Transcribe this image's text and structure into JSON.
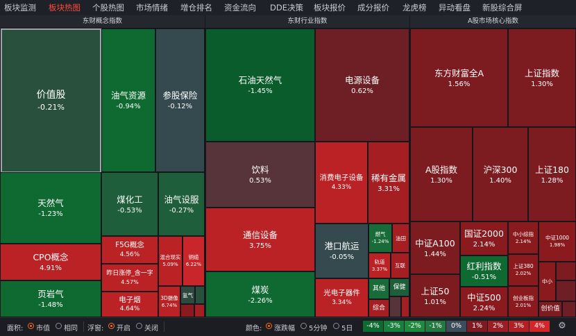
{
  "nav": {
    "tabs": [
      {
        "label": "板块监测",
        "active": false
      },
      {
        "label": "板块热图",
        "active": true
      },
      {
        "label": "个股热图",
        "active": false
      },
      {
        "label": "市场情绪",
        "active": false
      },
      {
        "label": "增仓排名",
        "active": false
      },
      {
        "label": "资金流向",
        "active": false
      },
      {
        "label": "DDE决策",
        "active": false
      },
      {
        "label": "板块报价",
        "active": false
      },
      {
        "label": "成分报价",
        "active": false
      },
      {
        "label": "龙虎榜",
        "active": false
      },
      {
        "label": "异动看盘",
        "active": false
      },
      {
        "label": "新股综合屏",
        "active": false
      }
    ]
  },
  "sections": [
    {
      "title": "东财概念指数"
    },
    {
      "title": "东财行业指数"
    },
    {
      "title": "A股市场核心指数"
    }
  ],
  "tiles": [
    {
      "name": "价值股",
      "pct": "-0.21%"
    },
    {
      "name": "油气资源",
      "pct": "-0.94%"
    },
    {
      "name": "参股保险",
      "pct": "-0.12%"
    },
    {
      "name": "天然气",
      "pct": "-1.23%"
    },
    {
      "name": "煤化工",
      "pct": "-0.53%"
    },
    {
      "name": "油气设服",
      "pct": "-0.27%"
    },
    {
      "name": "CPO概念",
      "pct": "4.91%"
    },
    {
      "name": "F5G概念",
      "pct": "4.56%"
    },
    {
      "name": "昨日涨停_含一字",
      "pct": "4.57%"
    },
    {
      "name": "混合现实",
      "pct": "5.09%"
    },
    {
      "name": "铜缆",
      "pct": "6.22%"
    },
    {
      "name": "页岩气",
      "pct": "-1.48%"
    },
    {
      "name": "电子烟",
      "pct": "4.64%"
    },
    {
      "name": "3D摄像",
      "pct": "6.74%"
    },
    {
      "name": "氢气",
      "pct": ""
    },
    {
      "name": "石油天然气",
      "pct": "-1.45%"
    },
    {
      "name": "电源设备",
      "pct": "0.62%"
    },
    {
      "name": "饮料",
      "pct": "0.53%"
    },
    {
      "name": "消费电子设备",
      "pct": "4.33%"
    },
    {
      "name": "稀有金属",
      "pct": "3.31%"
    },
    {
      "name": "通信设备",
      "pct": "3.75%"
    },
    {
      "name": "港口航运",
      "pct": "-0.05%"
    },
    {
      "name": "燃气",
      "pct": "-1.24%"
    },
    {
      "name": "油田",
      "pct": ""
    },
    {
      "name": "轨道",
      "pct": "3.37%"
    },
    {
      "name": "互联",
      "pct": ""
    },
    {
      "name": "煤炭",
      "pct": "-2.26%"
    },
    {
      "name": "光电子器件",
      "pct": "3.34%"
    },
    {
      "name": "其他",
      "pct": ""
    },
    {
      "name": "保健",
      "pct": ""
    },
    {
      "name": "综合",
      "pct": ""
    },
    {
      "name": "东方财富全A",
      "pct": "1.56%"
    },
    {
      "name": "上证指数",
      "pct": "1.30%"
    },
    {
      "name": "A股指数",
      "pct": "1.30%"
    },
    {
      "name": "沪深300",
      "pct": "1.40%"
    },
    {
      "name": "上证180",
      "pct": "1.28%"
    },
    {
      "name": "中证A100",
      "pct": "1.44%"
    },
    {
      "name": "国证2000",
      "pct": "2.14%"
    },
    {
      "name": "中小综指",
      "pct": "2.14%"
    },
    {
      "name": "中证1000",
      "pct": "1.98%"
    },
    {
      "name": "红利指数",
      "pct": "-0.51%"
    },
    {
      "name": "上证380",
      "pct": "2.02%"
    },
    {
      "name": "中小",
      "pct": ""
    },
    {
      "name": "上证50",
      "pct": "1.01%"
    },
    {
      "name": "中证500",
      "pct": "2.24%"
    },
    {
      "name": "创业板指",
      "pct": "2.01%"
    },
    {
      "name": "创价值",
      "pct": ""
    }
  ],
  "bottom": {
    "area_label": "面积:",
    "area_opts": [
      "市值",
      "相同"
    ],
    "float_label": "浮窗:",
    "float_opts": [
      "开启",
      "关闭"
    ],
    "color_label": "颜色:",
    "color_opts": [
      "涨跌幅",
      "5分钟",
      "5日"
    ],
    "legend": [
      "-4%",
      "-3%",
      "-2%",
      "-1%",
      "0%",
      "1%",
      "2%",
      "3%",
      "4%"
    ],
    "legend_colors": [
      "#0d6b31",
      "#18803c",
      "#1d8a3e",
      "#23793f",
      "#3b4d5a",
      "#7e1b22",
      "#9a1e23",
      "#b21f25",
      "#d3262b"
    ]
  }
}
